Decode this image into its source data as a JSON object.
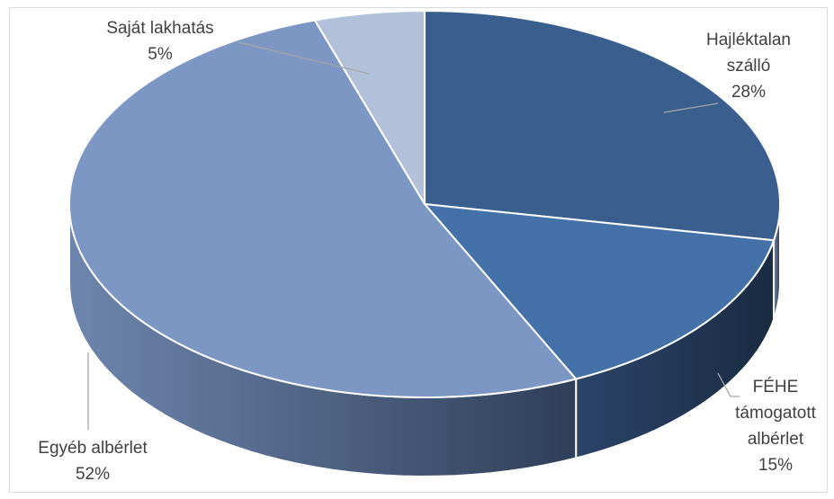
{
  "chart_data": {
    "type": "pie",
    "title": "",
    "style": "3d-pie",
    "slices": [
      {
        "label_lines": [
          "Hajléktalan",
          "szálló"
        ],
        "value": 28,
        "display": "28%",
        "color": "#3A5F8F"
      },
      {
        "label_lines": [
          "FÉHE",
          "támogatott",
          "albérlet"
        ],
        "value": 15,
        "display": "15%",
        "color": "#4472A8"
      },
      {
        "label_lines": [
          "Egyéb albérlet"
        ],
        "value": 52,
        "display": "52%",
        "color": "#7C97C3"
      },
      {
        "label_lines": [
          "Saját lakhatás"
        ],
        "value": 5,
        "display": "5%",
        "color": "#B1C1DA"
      }
    ]
  }
}
